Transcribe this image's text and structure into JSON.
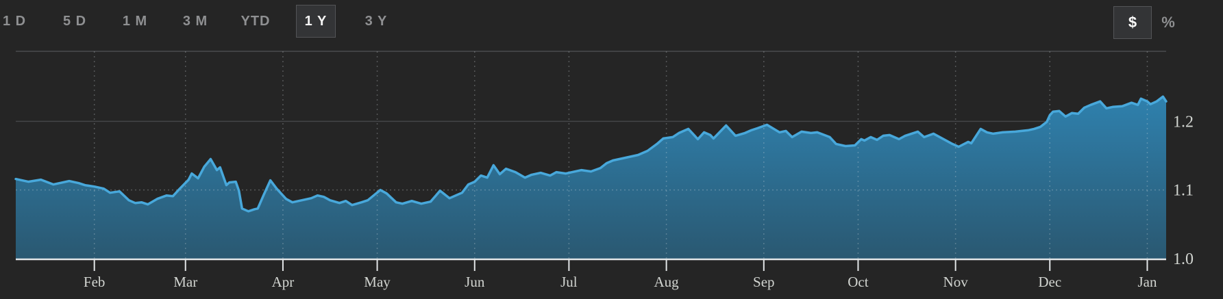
{
  "toolbar": {
    "ranges": [
      {
        "label": "1 D",
        "selected": false
      },
      {
        "label": "5 D",
        "selected": false
      },
      {
        "label": "1 M",
        "selected": false
      },
      {
        "label": "3 M",
        "selected": false
      },
      {
        "label": "YTD",
        "selected": false
      },
      {
        "label": "1 Y",
        "selected": true
      },
      {
        "label": "3 Y",
        "selected": false
      }
    ],
    "unit_toggle": [
      {
        "label": "$",
        "selected": true
      },
      {
        "label": "%",
        "selected": false
      }
    ]
  },
  "chart_data": {
    "type": "area",
    "title": "",
    "xlabel": "",
    "ylabel": "",
    "x_unit": "days from range start (1 year span)",
    "x_domain": [
      0,
      366
    ],
    "ylim": [
      1.0,
      1.302
    ],
    "y_ticks": [
      1.0,
      1.1,
      1.2
    ],
    "y_tick_labels": [
      "1.0",
      "1.1",
      "1.2"
    ],
    "y_gridline_solid": 1.2,
    "y_gridline_dashed": 1.1,
    "grid": "monthly vertical dotted lines, horizontal line at 1.2 solid and 1.1 dashed, top border",
    "legend": "none",
    "month_ticks": [
      {
        "label": "Feb",
        "day": 25
      },
      {
        "label": "Mar",
        "day": 54
      },
      {
        "label": "Apr",
        "day": 85
      },
      {
        "label": "May",
        "day": 115
      },
      {
        "label": "Jun",
        "day": 146
      },
      {
        "label": "Jul",
        "day": 176
      },
      {
        "label": "Aug",
        "day": 207
      },
      {
        "label": "Sep",
        "day": 238
      },
      {
        "label": "Oct",
        "day": 268
      },
      {
        "label": "Nov",
        "day": 299
      },
      {
        "label": "Dec",
        "day": 329
      },
      {
        "label": "Jan",
        "day": 360
      }
    ],
    "series": [
      {
        "name": "value",
        "points": [
          [
            0,
            1.116
          ],
          [
            4,
            1.112
          ],
          [
            8,
            1.115
          ],
          [
            12,
            1.108
          ],
          [
            17,
            1.113
          ],
          [
            20,
            1.11
          ],
          [
            22,
            1.107
          ],
          [
            25,
            1.105
          ],
          [
            28,
            1.102
          ],
          [
            30,
            1.096
          ],
          [
            33,
            1.098
          ],
          [
            36,
            1.085
          ],
          [
            38,
            1.081
          ],
          [
            40,
            1.082
          ],
          [
            42,
            1.079
          ],
          [
            45,
            1.087
          ],
          [
            48,
            1.092
          ],
          [
            50,
            1.091
          ],
          [
            52,
            1.101
          ],
          [
            55,
            1.115
          ],
          [
            56,
            1.124
          ],
          [
            58,
            1.117
          ],
          [
            60,
            1.134
          ],
          [
            62,
            1.145
          ],
          [
            64,
            1.129
          ],
          [
            65,
            1.133
          ],
          [
            67,
            1.107
          ],
          [
            68,
            1.111
          ],
          [
            70,
            1.112
          ],
          [
            71,
            1.099
          ],
          [
            72,
            1.073
          ],
          [
            74,
            1.069
          ],
          [
            76,
            1.072
          ],
          [
            77,
            1.073
          ],
          [
            79,
            1.094
          ],
          [
            81,
            1.114
          ],
          [
            83,
            1.102
          ],
          [
            86,
            1.087
          ],
          [
            88,
            1.082
          ],
          [
            91,
            1.085
          ],
          [
            94,
            1.088
          ],
          [
            96,
            1.092
          ],
          [
            98,
            1.09
          ],
          [
            100,
            1.085
          ],
          [
            103,
            1.081
          ],
          [
            105,
            1.084
          ],
          [
            107,
            1.078
          ],
          [
            110,
            1.082
          ],
          [
            112,
            1.085
          ],
          [
            116,
            1.1
          ],
          [
            118,
            1.095
          ],
          [
            121,
            1.082
          ],
          [
            123,
            1.08
          ],
          [
            126,
            1.084
          ],
          [
            129,
            1.08
          ],
          [
            132,
            1.083
          ],
          [
            135,
            1.099
          ],
          [
            138,
            1.088
          ],
          [
            140,
            1.092
          ],
          [
            142,
            1.096
          ],
          [
            144,
            1.108
          ],
          [
            146,
            1.112
          ],
          [
            148,
            1.121
          ],
          [
            150,
            1.118
          ],
          [
            152,
            1.136
          ],
          [
            154,
            1.123
          ],
          [
            156,
            1.131
          ],
          [
            159,
            1.126
          ],
          [
            162,
            1.118
          ],
          [
            164,
            1.122
          ],
          [
            167,
            1.125
          ],
          [
            170,
            1.121
          ],
          [
            172,
            1.126
          ],
          [
            175,
            1.124
          ],
          [
            177,
            1.126
          ],
          [
            180,
            1.129
          ],
          [
            183,
            1.127
          ],
          [
            186,
            1.132
          ],
          [
            188,
            1.139
          ],
          [
            190,
            1.143
          ],
          [
            193,
            1.146
          ],
          [
            198,
            1.151
          ],
          [
            201,
            1.157
          ],
          [
            204,
            1.167
          ],
          [
            206,
            1.175
          ],
          [
            209,
            1.177
          ],
          [
            211,
            1.183
          ],
          [
            214,
            1.189
          ],
          [
            217,
            1.174
          ],
          [
            219,
            1.184
          ],
          [
            221,
            1.18
          ],
          [
            222,
            1.175
          ],
          [
            226,
            1.194
          ],
          [
            229,
            1.179
          ],
          [
            232,
            1.183
          ],
          [
            234,
            1.187
          ],
          [
            236,
            1.19
          ],
          [
            239,
            1.195
          ],
          [
            243,
            1.184
          ],
          [
            245,
            1.186
          ],
          [
            247,
            1.177
          ],
          [
            250,
            1.185
          ],
          [
            253,
            1.183
          ],
          [
            255,
            1.184
          ],
          [
            259,
            1.177
          ],
          [
            261,
            1.167
          ],
          [
            264,
            1.164
          ],
          [
            267,
            1.165
          ],
          [
            269,
            1.174
          ],
          [
            270,
            1.172
          ],
          [
            272,
            1.177
          ],
          [
            274,
            1.173
          ],
          [
            276,
            1.179
          ],
          [
            278,
            1.18
          ],
          [
            281,
            1.174
          ],
          [
            283,
            1.179
          ],
          [
            287,
            1.185
          ],
          [
            289,
            1.177
          ],
          [
            292,
            1.182
          ],
          [
            294,
            1.177
          ],
          [
            298,
            1.167
          ],
          [
            300,
            1.163
          ],
          [
            303,
            1.17
          ],
          [
            304,
            1.168
          ],
          [
            307,
            1.189
          ],
          [
            309,
            1.184
          ],
          [
            311,
            1.182
          ],
          [
            314,
            1.184
          ],
          [
            318,
            1.185
          ],
          [
            322,
            1.187
          ],
          [
            324,
            1.189
          ],
          [
            326,
            1.192
          ],
          [
            328,
            1.199
          ],
          [
            329,
            1.209
          ],
          [
            330,
            1.214
          ],
          [
            332,
            1.215
          ],
          [
            334,
            1.207
          ],
          [
            336,
            1.212
          ],
          [
            338,
            1.211
          ],
          [
            340,
            1.22
          ],
          [
            342,
            1.224
          ],
          [
            345,
            1.229
          ],
          [
            347,
            1.219
          ],
          [
            349,
            1.221
          ],
          [
            352,
            1.222
          ],
          [
            355,
            1.227
          ],
          [
            357,
            1.224
          ],
          [
            358,
            1.233
          ],
          [
            360,
            1.229
          ],
          [
            361,
            1.225
          ],
          [
            363,
            1.229
          ],
          [
            365,
            1.236
          ],
          [
            366,
            1.229
          ]
        ]
      }
    ],
    "colors": {
      "background": "#252525",
      "line": "#48a8db",
      "fill_top": "#2f81ae",
      "fill_bottom": "#2a5871",
      "grid_strong": "#4b4c4f",
      "grid_light": "rgba(214,222,228,0.28)",
      "axis": "#e3e6e8",
      "text": "#d2d5d1"
    }
  }
}
